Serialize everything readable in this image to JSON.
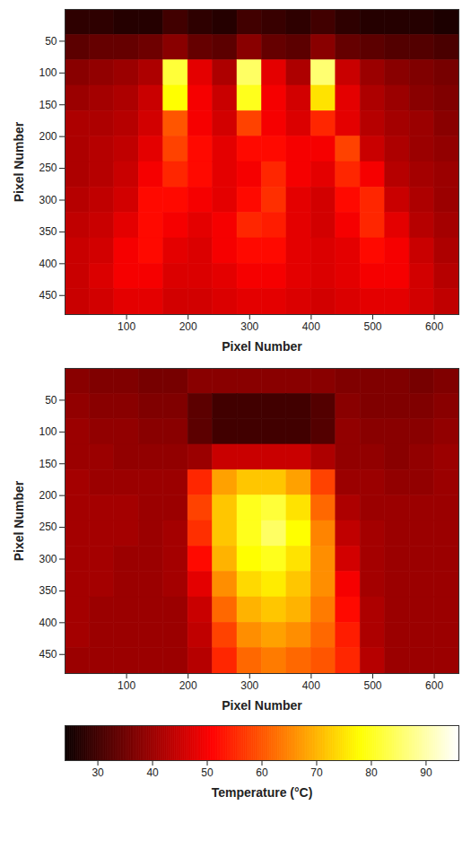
{
  "chart_data": [
    {
      "type": "heatmap",
      "xlabel": "Pixel Number",
      "ylabel": "Pixel Number",
      "xlim": [
        0,
        640
      ],
      "xticks": [
        100,
        200,
        300,
        400,
        500,
        600
      ],
      "ylim": [
        0,
        480
      ],
      "yticks": [
        50,
        100,
        150,
        200,
        250,
        300,
        350,
        400,
        450
      ],
      "cells": [
        [
          28,
          28,
          27,
          27,
          30,
          28,
          27,
          30,
          29,
          28,
          30,
          28,
          27,
          27,
          27,
          26
        ],
        [
          33,
          34,
          34,
          35,
          38,
          34,
          33,
          38,
          34,
          33,
          38,
          34,
          33,
          32,
          32,
          31
        ],
        [
          38,
          39,
          40,
          42,
          82,
          48,
          42,
          85,
          48,
          42,
          86,
          45,
          40,
          38,
          37,
          36
        ],
        [
          40,
          41,
          42,
          45,
          78,
          50,
          45,
          80,
          50,
          46,
          75,
          48,
          42,
          40,
          38,
          37
        ],
        [
          42,
          42,
          43,
          46,
          60,
          50,
          46,
          58,
          50,
          47,
          55,
          48,
          43,
          41,
          40,
          38
        ],
        [
          42,
          43,
          44,
          48,
          58,
          52,
          48,
          52,
          52,
          50,
          50,
          58,
          45,
          42,
          40,
          39
        ],
        [
          42,
          43,
          45,
          50,
          55,
          52,
          48,
          50,
          55,
          50,
          48,
          55,
          50,
          43,
          41,
          40
        ],
        [
          43,
          44,
          46,
          52,
          52,
          50,
          48,
          52,
          56,
          48,
          46,
          52,
          55,
          45,
          42,
          40
        ],
        [
          44,
          45,
          48,
          52,
          50,
          48,
          50,
          55,
          54,
          48,
          46,
          50,
          55,
          48,
          43,
          41
        ],
        [
          45,
          46,
          50,
          52,
          48,
          47,
          50,
          52,
          52,
          48,
          47,
          48,
          52,
          50,
          45,
          42
        ],
        [
          45,
          47,
          50,
          50,
          47,
          47,
          48,
          50,
          50,
          48,
          47,
          48,
          50,
          50,
          46,
          43
        ],
        [
          45,
          46,
          48,
          48,
          46,
          46,
          47,
          48,
          48,
          47,
          46,
          47,
          48,
          48,
          46,
          44
        ]
      ]
    },
    {
      "type": "heatmap",
      "xlabel": "Pixel Number",
      "ylabel": "Pixel Number",
      "xlim": [
        0,
        640
      ],
      "xticks": [
        100,
        200,
        300,
        400,
        500,
        600
      ],
      "ylim": [
        0,
        480
      ],
      "yticks": [
        50,
        100,
        150,
        200,
        250,
        300,
        350,
        400,
        450
      ],
      "cells": [
        [
          38,
          37,
          37,
          36,
          36,
          38,
          38,
          38,
          38,
          38,
          38,
          37,
          37,
          37,
          36,
          37
        ],
        [
          39,
          38,
          38,
          37,
          37,
          33,
          30,
          30,
          30,
          30,
          32,
          38,
          37,
          37,
          37,
          38
        ],
        [
          40,
          39,
          39,
          38,
          38,
          33,
          30,
          30,
          30,
          30,
          32,
          39,
          38,
          38,
          38,
          39
        ],
        [
          40,
          40,
          39,
          39,
          39,
          40,
          45,
          45,
          45,
          45,
          42,
          39,
          39,
          38,
          39,
          40
        ],
        [
          41,
          40,
          40,
          40,
          40,
          55,
          68,
          72,
          72,
          68,
          58,
          40,
          40,
          39,
          39,
          40
        ],
        [
          41,
          41,
          41,
          40,
          40,
          58,
          72,
          80,
          82,
          75,
          62,
          42,
          40,
          40,
          40,
          40
        ],
        [
          41,
          41,
          41,
          40,
          41,
          56,
          72,
          80,
          85,
          78,
          65,
          44,
          41,
          40,
          40,
          40
        ],
        [
          41,
          41,
          40,
          40,
          41,
          52,
          70,
          78,
          80,
          75,
          66,
          46,
          41,
          40,
          40,
          40
        ],
        [
          41,
          41,
          40,
          40,
          41,
          48,
          66,
          74,
          76,
          72,
          66,
          50,
          41,
          40,
          40,
          40
        ],
        [
          41,
          40,
          40,
          40,
          40,
          45,
          62,
          70,
          72,
          70,
          64,
          52,
          42,
          40,
          40,
          40
        ],
        [
          41,
          40,
          40,
          40,
          40,
          44,
          58,
          66,
          68,
          66,
          62,
          54,
          42,
          40,
          40,
          40
        ],
        [
          40,
          40,
          40,
          40,
          40,
          43,
          55,
          62,
          64,
          62,
          60,
          55,
          43,
          40,
          40,
          40
        ]
      ]
    }
  ],
  "colorbar": {
    "label": "Temperature (°C)",
    "range": [
      24,
      96
    ],
    "ticks": [
      30,
      40,
      50,
      60,
      70,
      80,
      90
    ]
  }
}
